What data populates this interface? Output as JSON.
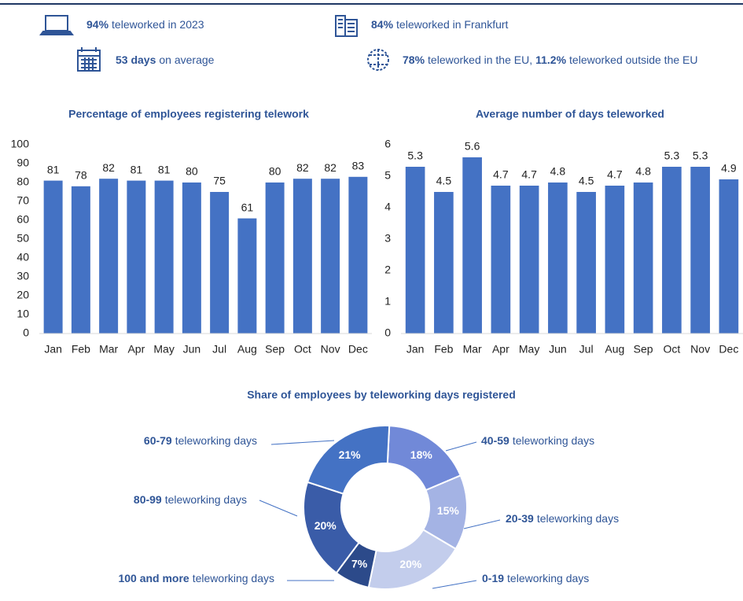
{
  "stats": [
    {
      "parts": [
        {
          "text": "94%",
          "bold": true
        },
        {
          "text": "teleworked in 2023",
          "bold": false
        }
      ]
    },
    {
      "parts": [
        {
          "text": "84%",
          "bold": true
        },
        {
          "text": "teleworked in Frankfurt",
          "bold": false
        }
      ]
    },
    {
      "parts": [
        {
          "text": "53 days",
          "bold": true
        },
        {
          "text": "on average",
          "bold": false
        }
      ]
    },
    {
      "parts": [
        {
          "text": "78%",
          "bold": true
        },
        {
          "text": "teleworked in the EU,",
          "bold": false
        },
        {
          "text": "11.2%",
          "bold": true
        },
        {
          "text": "teleworked outside the EU",
          "bold": false
        }
      ]
    }
  ],
  "chart_data": [
    {
      "type": "bar",
      "title": "Percentage of employees registering telework",
      "categories": [
        "Jan",
        "Feb",
        "Mar",
        "Apr",
        "May",
        "Jun",
        "Jul",
        "Aug",
        "Sep",
        "Oct",
        "Nov",
        "Dec"
      ],
      "values": [
        81,
        78,
        82,
        81,
        81,
        80,
        75,
        61,
        80,
        82,
        82,
        83
      ],
      "color": "#4472c4",
      "ylim": [
        0,
        100
      ],
      "yticks": [
        0,
        10,
        20,
        30,
        40,
        50,
        60,
        70,
        80,
        90,
        100
      ],
      "grid": false
    },
    {
      "type": "bar",
      "title": "Average number of days teleworked",
      "categories": [
        "Jan",
        "Feb",
        "Mar",
        "Apr",
        "May",
        "Jun",
        "Jul",
        "Aug",
        "Sep",
        "Oct",
        "Nov",
        "Dec"
      ],
      "values": [
        5.3,
        4.5,
        5.6,
        4.7,
        4.7,
        4.8,
        4.5,
        4.7,
        4.8,
        5.3,
        5.3,
        4.9
      ],
      "color": "#4472c4",
      "ylim": [
        0,
        6
      ],
      "yticks": [
        0,
        1,
        2,
        3,
        4,
        5,
        6
      ],
      "grid": false
    },
    {
      "type": "donut",
      "title": "Share of employees by teleworking days registered",
      "categories": [
        "40-59",
        "20-39",
        "0-19",
        "100 and more",
        "80-99",
        "60-79"
      ],
      "category_suffix": "teleworking days",
      "values": [
        18,
        15,
        20,
        7,
        20,
        21
      ],
      "value_labels": [
        "18%",
        "15%",
        "20%",
        "7%",
        "20%",
        "21%"
      ],
      "colors": [
        "#7189d8",
        "#a4b3e4",
        "#c3cdec",
        "#2c4a8a",
        "#3a5ca8",
        "#4472c4"
      ]
    }
  ]
}
